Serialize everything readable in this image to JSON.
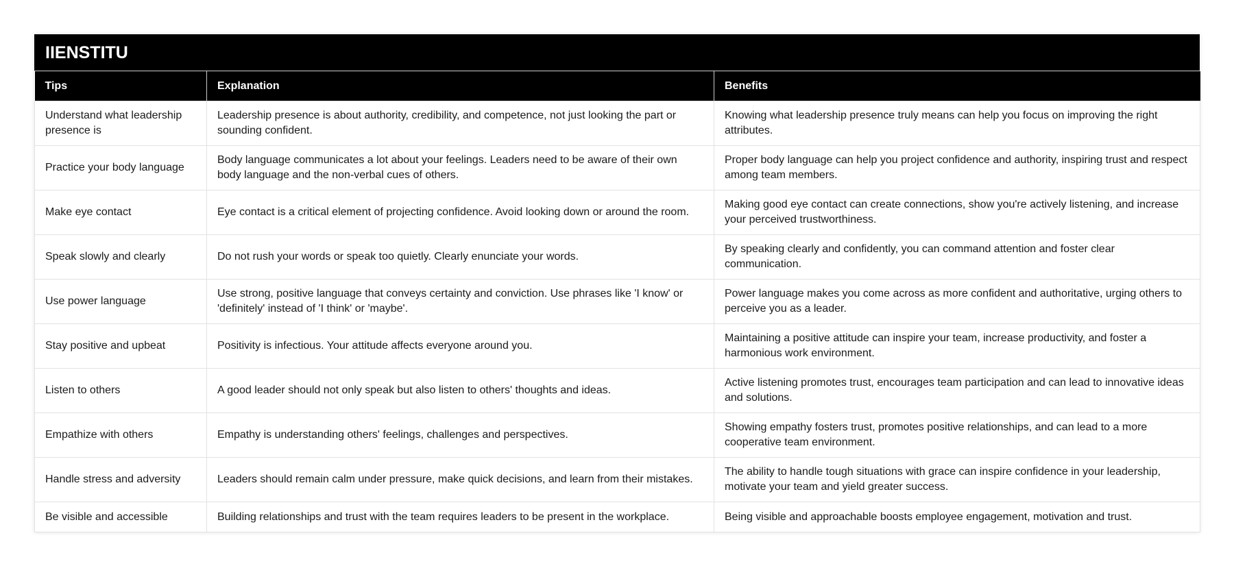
{
  "title": "IIENSTITU",
  "columns": [
    "Tips",
    "Explanation",
    "Benefits"
  ],
  "rows": [
    [
      "Understand what leadership presence is",
      "Leadership presence is about authority, credibility, and competence, not just looking the part or sounding confident.",
      "Knowing what leadership presence truly means can help you focus on improving the right attributes."
    ],
    [
      "Practice your body language",
      "Body language communicates a lot about your feelings. Leaders need to be aware of their own body language and the non-verbal cues of others.",
      "Proper body language can help you project confidence and authority, inspiring trust and respect among team members."
    ],
    [
      "Make eye contact",
      "Eye contact is a critical element of projecting confidence. Avoid looking down or around the room.",
      "Making good eye contact can create connections, show you're actively listening, and increase your perceived trustworthiness."
    ],
    [
      "Speak slowly and clearly",
      "Do not rush your words or speak too quietly. Clearly enunciate your words.",
      "By speaking clearly and confidently, you can command attention and foster clear communication."
    ],
    [
      "Use power language",
      "Use strong, positive language that conveys certainty and conviction. Use phrases like 'I know' or 'definitely' instead of 'I think' or 'maybe'.",
      "Power language makes you come across as more confident and authoritative, urging others to perceive you as a leader."
    ],
    [
      "Stay positive and upbeat",
      "Positivity is infectious. Your attitude affects everyone around you.",
      "Maintaining a positive attitude can inspire your team, increase productivity, and foster a harmonious work environment."
    ],
    [
      "Listen to others",
      "A good leader should not only speak but also listen to others' thoughts and ideas.",
      "Active listening promotes trust, encourages team participation and can lead to innovative ideas and solutions."
    ],
    [
      "Empathize with others",
      "Empathy is understanding others' feelings, challenges and perspectives.",
      "Showing empathy fosters trust, promotes positive relationships, and can lead to a more cooperative team environment."
    ],
    [
      "Handle stress and adversity",
      "Leaders should remain calm under pressure, make quick decisions, and learn from their mistakes.",
      "The ability to handle tough situations with grace can inspire confidence in your leadership, motivate your team and yield greater success."
    ],
    [
      "Be visible and accessible",
      "Building relationships and trust with the team requires leaders to be present in the workplace.",
      "Being visible and approachable boosts employee engagement, motivation and trust."
    ]
  ]
}
